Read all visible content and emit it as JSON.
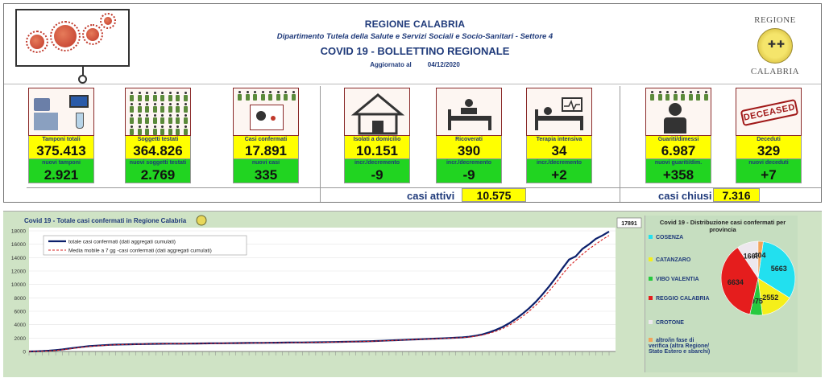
{
  "header": {
    "title1": "REGIONE CALABRIA",
    "title2": "Dipartimento Tutela della Salute e Servizi Sociali e Socio-Sanitari - Settore 4",
    "title3": "COVID 19 - BOLLETTINO REGIONALE",
    "updated_label": "Aggiornato al",
    "updated_date": "04/12/2020",
    "logo_top": "REGIONE",
    "logo_bottom": "CALABRIA"
  },
  "cards": [
    {
      "label": "Tamponi totali",
      "value": "375.413",
      "sub_label": "nuovi tamponi",
      "sub_value": "2.921",
      "icon": "lab-equipment-icon"
    },
    {
      "label": "Soggetti testati",
      "value": "364.826",
      "sub_label": "nuovi soggetti testati",
      "sub_value": "2.769",
      "icon": "people-grid-icon"
    },
    {
      "label": "Casi confermati",
      "value": "17.891",
      "sub_label": "nuovi casi",
      "sub_value": "335",
      "icon": "infected-person-icon"
    },
    {
      "label": "Isolati a domicilio",
      "value": "10.151",
      "sub_label": "incr./decremento",
      "sub_value": "-9",
      "icon": "house-icon"
    },
    {
      "label": "Ricoverati",
      "value": "390",
      "sub_label": "incr./decremento",
      "sub_value": "-9",
      "icon": "hospital-bed-icon"
    },
    {
      "label": "Terapia intensiva",
      "value": "34",
      "sub_label": "incr./decremento",
      "sub_value": "+2",
      "icon": "icu-bed-icon"
    },
    {
      "label": "Guariti/dimessi",
      "value": "6.987",
      "sub_label": "nuovi guariti/dim.",
      "sub_value": "+358",
      "icon": "recovered-person-icon"
    },
    {
      "label": "Deceduti",
      "value": "329",
      "sub_label": "nuovi deceduti",
      "sub_value": "+7",
      "icon": "deceased-stamp-icon"
    }
  ],
  "deceased_stamp_text": "DECEASED",
  "summary": {
    "active_label": "casi attivi",
    "active_value": "10.575",
    "closed_label": "casi chiusi",
    "closed_value": "7.316"
  },
  "chart_data": [
    {
      "type": "line",
      "title": "Covid 19 - Totale casi confermati in Regione Calabria",
      "ylim": [
        0,
        18000
      ],
      "yticks": [
        0,
        2000,
        4000,
        6000,
        8000,
        10000,
        12000,
        14000,
        16000,
        18000
      ],
      "last_value_label": "17891",
      "legend_position": "top-left",
      "series": [
        {
          "name": "totale casi confermati (dati aggregati cumulati)",
          "color": "#0b1f6b",
          "style": "solid",
          "values": [
            0,
            20,
            60,
            120,
            200,
            300,
            430,
            560,
            690,
            790,
            860,
            920,
            980,
            1020,
            1050,
            1070,
            1090,
            1110,
            1130,
            1140,
            1150,
            1160,
            1165,
            1170,
            1180,
            1190,
            1200,
            1210,
            1220,
            1230,
            1240,
            1250,
            1260,
            1270,
            1280,
            1290,
            1300,
            1310,
            1320,
            1330,
            1340,
            1350,
            1360,
            1370,
            1380,
            1400,
            1420,
            1440,
            1460,
            1480,
            1500,
            1530,
            1560,
            1600,
            1640,
            1680,
            1720,
            1760,
            1800,
            1840,
            1880,
            1920,
            1960,
            2000,
            2050,
            2100,
            2200,
            2350,
            2550,
            2850,
            3200,
            3650,
            4200,
            4850,
            5600,
            6450,
            7400,
            8500,
            9700,
            11000,
            12400,
            13700,
            14200,
            15300,
            16000,
            16800,
            17300,
            17891
          ]
        },
        {
          "name": "Media mobile a 7 gg -casi confermati (dati aggregati cumulati)",
          "color": "#d62020",
          "style": "dashed",
          "values": [
            0,
            10,
            40,
            90,
            160,
            250,
            370,
            500,
            630,
            740,
            820,
            890,
            950,
            1000,
            1035,
            1060,
            1080,
            1100,
            1120,
            1135,
            1145,
            1155,
            1162,
            1168,
            1175,
            1185,
            1195,
            1205,
            1215,
            1225,
            1235,
            1245,
            1255,
            1265,
            1275,
            1285,
            1295,
            1305,
            1315,
            1325,
            1335,
            1345,
            1355,
            1365,
            1375,
            1390,
            1410,
            1430,
            1450,
            1470,
            1490,
            1515,
            1545,
            1580,
            1620,
            1660,
            1700,
            1740,
            1780,
            1820,
            1860,
            1900,
            1940,
            1980,
            2025,
            2075,
            2150,
            2280,
            2450,
            2700,
            3000,
            3400,
            3900,
            4500,
            5200,
            6000,
            6900,
            7900,
            9000,
            10200,
            11500,
            12700,
            13600,
            14500,
            15300,
            16000,
            16700,
            17300
          ]
        }
      ]
    },
    {
      "type": "pie",
      "title": "Covid 19 - Distribuzione casi confermati per provincia",
      "legend_position": "left",
      "slices": [
        {
          "label": "COSENZA",
          "value": 5663,
          "color": "#22e0ef"
        },
        {
          "label": "CATANZARO",
          "value": 2552,
          "color": "#f5ef1a"
        },
        {
          "label": "VIBO VALENTIA",
          "value": 975,
          "color": "#27c93f"
        },
        {
          "label": "REGGIO CALABRIA",
          "value": 6634,
          "color": "#e51d1d"
        },
        {
          "label": "CROTONE",
          "value": 1663,
          "color": "#ede8ee"
        },
        {
          "label": "altro/in fase di verifica (altra Regione/ Stato Estero e sbarchi)",
          "value": 404,
          "color": "#f3a35a"
        }
      ]
    }
  ]
}
